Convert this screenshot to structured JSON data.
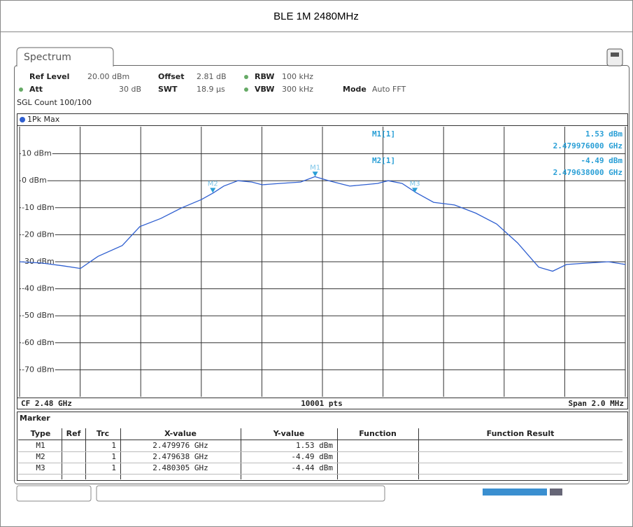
{
  "title": "BLE 1M 2480MHz",
  "tab": "Spectrum",
  "settings": {
    "ref_level_label": "Ref Level",
    "ref_level": "20.00 dBm",
    "offset_label": "Offset",
    "offset": "2.81 dB",
    "rbw_label": "RBW",
    "rbw": "100 kHz",
    "att_label": "Att",
    "att": "30 dB",
    "swt_label": "SWT",
    "swt": "18.9 µs",
    "vbw_label": "VBW",
    "vbw": "300 kHz",
    "mode_label": "Mode",
    "mode": "Auto FFT",
    "count": "SGL Count 100/100"
  },
  "chart_data": {
    "type": "line",
    "trace_label": "1Pk Max",
    "series": [
      {
        "name": "1Pk Max",
        "color": "#2f5fd0",
        "x": [
          2.479,
          2.479074,
          2.479143,
          2.479201,
          2.479259,
          2.479339,
          2.479397,
          2.479466,
          2.479536,
          2.4796,
          2.47964,
          2.479674,
          2.479721,
          2.479767,
          2.479801,
          2.479859,
          2.479928,
          2.479975,
          2.480021,
          2.48009,
          2.480136,
          2.480182,
          2.480217,
          2.480263,
          2.480309,
          2.480367,
          2.480436,
          2.480506,
          2.480575,
          2.480644,
          2.480714,
          2.48076,
          2.480806,
          2.480875,
          2.480944,
          2.481
        ],
        "values": [
          -30,
          -30.5,
          -31.5,
          -32.5,
          -28,
          -24,
          -17,
          -14,
          -10,
          -7,
          -4.5,
          -2,
          0,
          -0.5,
          -1.5,
          -1,
          -0.5,
          1.5,
          0,
          -2,
          -1.5,
          -1,
          0,
          -1,
          -4.4,
          -8,
          -9,
          -12,
          -16,
          -23,
          -32,
          -33.5,
          -31,
          -30.5,
          -30,
          -31
        ]
      }
    ],
    "markers": [
      {
        "name": "M1",
        "x": 2.479976,
        "y": 1.53
      },
      {
        "name": "M2",
        "x": 2.479638,
        "y": -4.49
      },
      {
        "name": "M3",
        "x": 2.480305,
        "y": -4.44
      }
    ],
    "marker_info": [
      {
        "label": "M1[1]",
        "value": "1.53 dBm",
        "freq": "2.479976000 GHz"
      },
      {
        "label": "M2[1]",
        "value": "-4.49 dBm",
        "freq": "2.479638000 GHz"
      }
    ],
    "xlim": [
      2.479,
      2.481
    ],
    "xticks": [
      2.479,
      2.4792,
      2.4794,
      2.4796,
      2.4798,
      2.48,
      2.4802,
      2.4804,
      2.4806,
      2.4808,
      2.481
    ],
    "ylim": [
      -80,
      20
    ],
    "yticks": [
      {
        "value": 10,
        "label": "10 dBm"
      },
      {
        "value": 0,
        "label": "0 dBm"
      },
      {
        "value": -10,
        "label": "-10 dBm"
      },
      {
        "value": -20,
        "label": "-20 dBm"
      },
      {
        "value": -30,
        "label": "-30 dBm"
      },
      {
        "value": -40,
        "label": "-40 dBm"
      },
      {
        "value": -50,
        "label": "-50 dBm"
      },
      {
        "value": -60,
        "label": "-60 dBm"
      },
      {
        "value": -70,
        "label": "-70 dBm"
      }
    ],
    "grid": true,
    "footer": {
      "left": "CF 2.48 GHz",
      "center": "10001 pts",
      "right": "Span 2.0 MHz"
    }
  },
  "marker_table": {
    "title": "Marker",
    "headers": [
      "Type",
      "Ref",
      "Trc",
      "X-value",
      "Y-value",
      "Function",
      "Function Result"
    ],
    "rows": [
      [
        "M1",
        "",
        "1",
        "2.479976 GHz",
        "1.53 dBm",
        "",
        ""
      ],
      [
        "M2",
        "",
        "1",
        "2.479638 GHz",
        "-4.49 dBm",
        "",
        ""
      ],
      [
        "M3",
        "",
        "1",
        "2.480305 GHz",
        "-4.44 dBm",
        "",
        ""
      ]
    ]
  }
}
